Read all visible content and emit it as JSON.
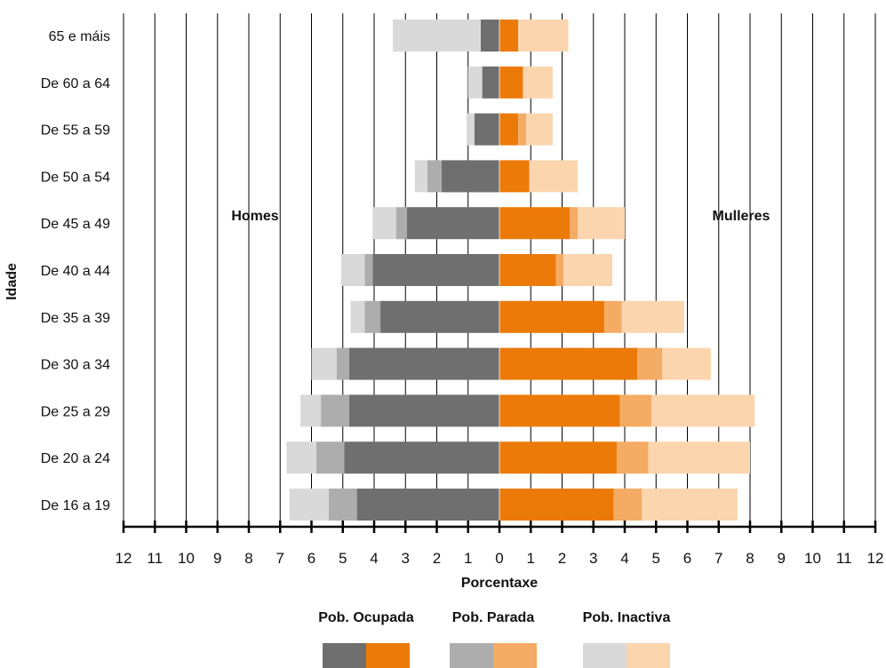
{
  "chart_data": {
    "type": "bar",
    "orientation": "horizontal",
    "layout": "population-pyramid",
    "xlabel": "Porcentaxe",
    "ylabel": "Idade",
    "xlim": [
      -12,
      12
    ],
    "xticks": [
      12,
      11,
      10,
      9,
      8,
      7,
      6,
      5,
      4,
      3,
      2,
      1,
      0,
      1,
      2,
      3,
      4,
      5,
      6,
      7,
      8,
      9,
      10,
      11,
      12
    ],
    "grid": true,
    "side_labels": {
      "left": "Homes",
      "right": "Mulleres"
    },
    "categories": [
      "65 e máis",
      "De 60 a 64",
      "De 55 a 59",
      "De 50 a 54",
      "De 45 a 49",
      "De 40 a 44",
      "De 35 a 39",
      "De 30 a 34",
      "De 25 a 29",
      "De 20 a 24",
      "De 16 a 19"
    ],
    "series": [
      {
        "name": "Pob. Ocupada",
        "men": [
          0.6,
          0.55,
          0.8,
          1.85,
          2.95,
          4.05,
          3.8,
          4.8,
          4.8,
          4.95,
          4.55
        ],
        "women": [
          0.6,
          0.75,
          0.6,
          0.95,
          2.25,
          1.8,
          3.35,
          4.4,
          3.85,
          3.75,
          3.65
        ],
        "color_men": "#6f6f6f",
        "color_women": "#ec7a08"
      },
      {
        "name": "Pob. Parada",
        "men": [
          0.0,
          0.0,
          0.0,
          0.45,
          0.35,
          0.25,
          0.5,
          0.4,
          0.9,
          0.9,
          0.9
        ],
        "women": [
          0.0,
          0.0,
          0.25,
          0.0,
          0.25,
          0.25,
          0.55,
          0.8,
          1.0,
          1.0,
          0.9
        ],
        "color_men": "#adadad",
        "color_women": "#f4ab63"
      },
      {
        "name": "Pob. Inactiva",
        "men": [
          2.8,
          0.45,
          0.25,
          0.4,
          0.75,
          0.75,
          0.45,
          0.8,
          0.65,
          0.95,
          1.25
        ],
        "women": [
          1.6,
          0.95,
          0.85,
          1.55,
          1.5,
          1.55,
          2.0,
          1.55,
          3.3,
          3.25,
          3.05
        ],
        "color_men": "#d9d9d9",
        "color_women": "#fbd5ae"
      }
    ]
  }
}
